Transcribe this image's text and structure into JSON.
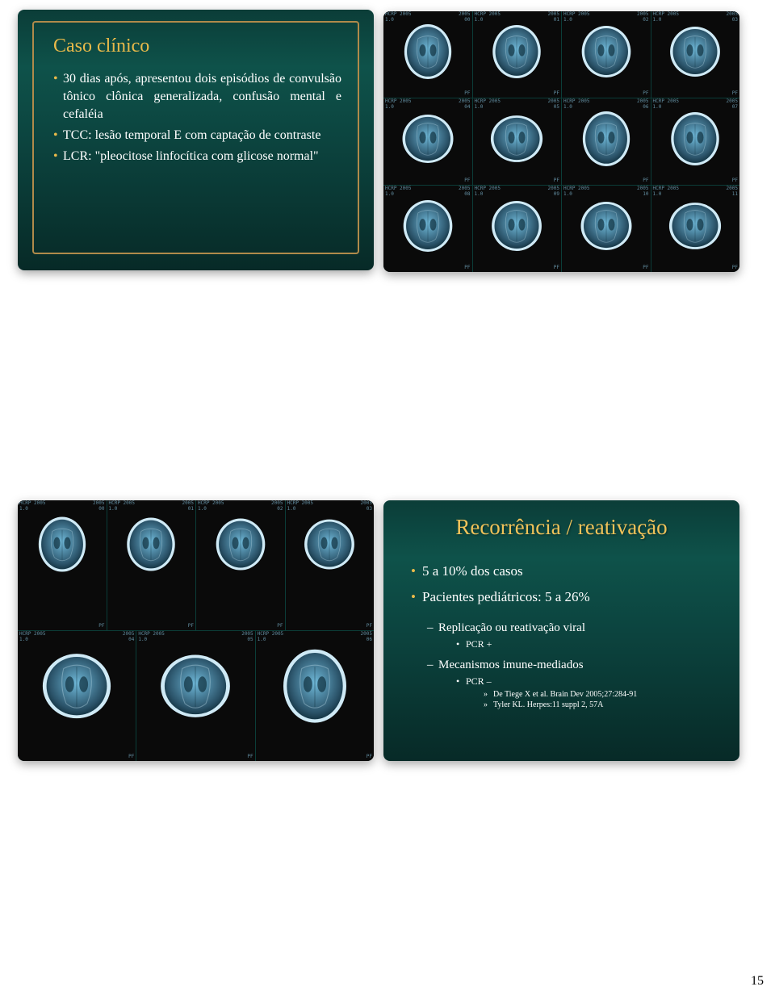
{
  "page_number": "15",
  "colors": {
    "slide_bg_top": "#0b3d38",
    "slide_bg_mid": "#0e524a",
    "slide_bg_bottom": "#072a27",
    "accent_gold": "#e8b94a",
    "title_gold": "#f0c35a",
    "text_white": "#ffffff",
    "frame_border": "#b08a4a",
    "ct_bg": "#0a0a0a",
    "ct_text": "#9adfff",
    "brain_fill": "#6fb8d8",
    "brain_rim": "#cfeaf6",
    "brain_dark": "#2a5268"
  },
  "typography": {
    "title_fontsize_pt": 24,
    "body_fontsize_pt": 16,
    "font_family": "Times New Roman, serif"
  },
  "slide1": {
    "title": "Caso clínico",
    "bullets": [
      "30 dias após, apresentou dois episódios de convulsão tônico clônica generalizada, confusão mental e cefaléia",
      "TCC: lesão temporal E com captação de contraste",
      "LCR: \"pleocitose linfocítica com glicose normal\""
    ]
  },
  "ct_grid_top": {
    "rows": 3,
    "cols": 4,
    "overlay_text": "HCRP 2005",
    "images_type": "CT brain axial slices"
  },
  "ct_grid_bottom": {
    "row1_cols": 4,
    "row2_cols": 3,
    "overlay_text": "HCRP 2005",
    "images_type": "CT brain axial slices"
  },
  "slide4": {
    "title": "Recorrência / reativação",
    "bullets_lvl1": [
      "5 a 10% dos casos",
      "Pacientes pediátricos: 5 a 26%"
    ],
    "sub1": {
      "label": "Replicação ou reativação viral",
      "child": "PCR +"
    },
    "sub2": {
      "label": "Mecanismos imune-mediados",
      "child": "PCR –",
      "refs": [
        "De Tiege X et al. Brain Dev 2005;27:284-91",
        "Tyler KL. Herpes:11 suppl 2, 57A"
      ]
    }
  }
}
